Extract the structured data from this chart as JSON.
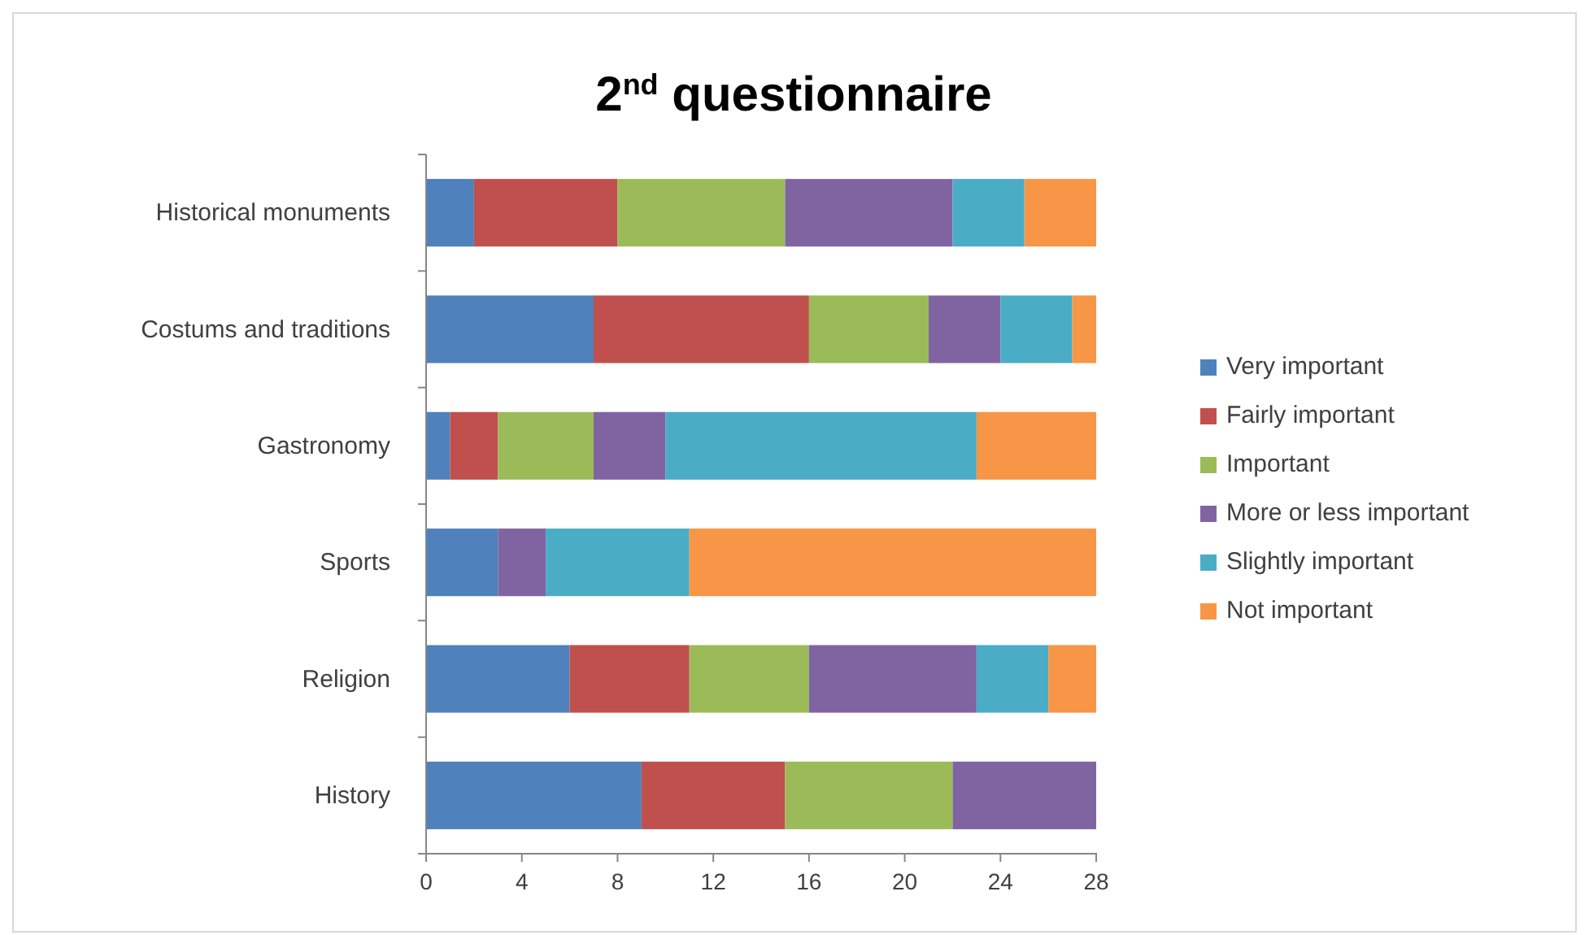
{
  "chart_data": {
    "type": "bar",
    "orientation": "horizontal",
    "stacked": true,
    "title": "2$^{nd}$ questionnaire",
    "categories": [
      "Historical monuments",
      "Costums and traditions",
      "Gastronomy",
      "Sports",
      "Religion",
      "History"
    ],
    "series": [
      {
        "name": "Very important",
        "color": "#4f81bd",
        "values": [
          2,
          7,
          1,
          3,
          6,
          9
        ]
      },
      {
        "name": "Fairly important",
        "color": "#c0504d",
        "values": [
          6,
          9,
          2,
          0,
          5,
          6
        ]
      },
      {
        "name": "Important",
        "color": "#9bbb59",
        "values": [
          7,
          5,
          4,
          0,
          5,
          7
        ]
      },
      {
        "name": "More or less important",
        "color": "#8064a2",
        "values": [
          7,
          3,
          3,
          2,
          7,
          6
        ]
      },
      {
        "name": "Slightly important",
        "color": "#4bacc6",
        "values": [
          3,
          3,
          13,
          6,
          3,
          0
        ]
      },
      {
        "name": "Not important",
        "color": "#f79646",
        "values": [
          3,
          1,
          5,
          17,
          2,
          0
        ]
      }
    ],
    "xlim": [
      0,
      28
    ],
    "xticks": [
      0,
      4,
      8,
      12,
      16,
      20,
      24,
      28
    ],
    "grid": false,
    "legend": "right"
  }
}
